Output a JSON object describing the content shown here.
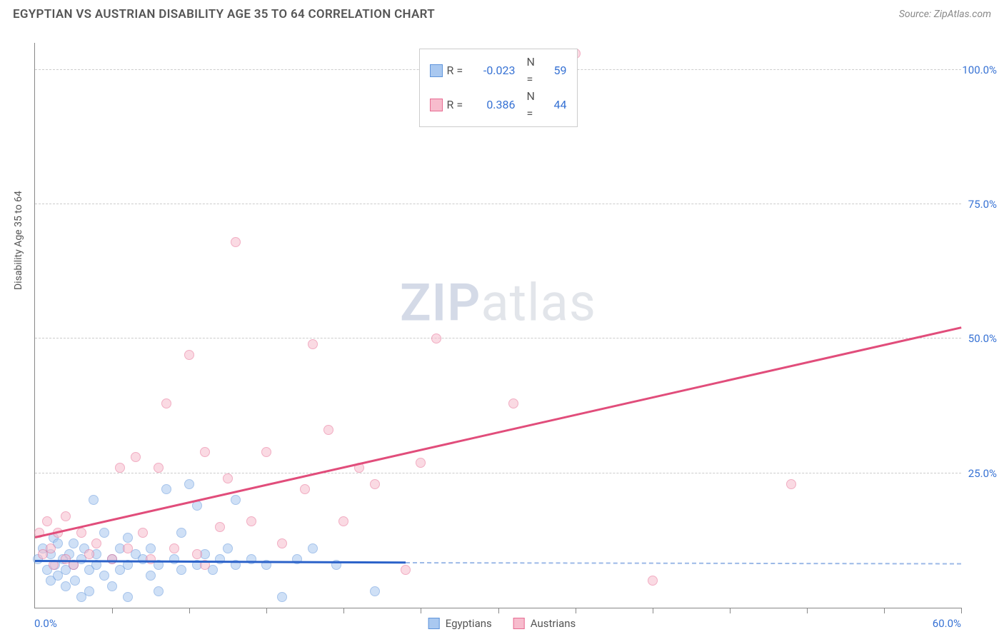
{
  "title": "EGYPTIAN VS AUSTRIAN DISABILITY AGE 35 TO 64 CORRELATION CHART",
  "source": "Source: ZipAtlas.com",
  "ylabel": "Disability Age 35 to 64",
  "watermark_bold": "ZIP",
  "watermark_rest": "atlas",
  "chart": {
    "type": "scatter",
    "xlim": [
      0,
      60
    ],
    "ylim": [
      0,
      105
    ],
    "x_min_label": "0.0%",
    "x_max_label": "60.0%",
    "y_ticks": [
      25,
      50,
      75,
      100
    ],
    "y_tick_labels": [
      "25.0%",
      "50.0%",
      "75.0%",
      "100.0%"
    ],
    "x_tick_step": 5,
    "background_color": "#ffffff",
    "grid_color": "#cccccc",
    "axis_color": "#888888",
    "label_color": "#3772d4",
    "point_radius": 7,
    "point_opacity": 0.55,
    "series": [
      {
        "name": "Egyptians",
        "fill": "#a9c8f0",
        "stroke": "#5f94db",
        "R": "-0.023",
        "N": "59",
        "trend": {
          "x1": 0,
          "y1": 8.5,
          "x2": 24,
          "y2": 8.2,
          "color": "#2b62c9",
          "width": 2.5,
          "dash_x2": 60,
          "dash_y2": 8.0,
          "dash_color": "#9cb9e7"
        },
        "points": [
          [
            0.2,
            9
          ],
          [
            0.5,
            11
          ],
          [
            0.8,
            7
          ],
          [
            1,
            10
          ],
          [
            1,
            5
          ],
          [
            1.2,
            13
          ],
          [
            1.3,
            8
          ],
          [
            1.5,
            6
          ],
          [
            1.5,
            12
          ],
          [
            1.8,
            9
          ],
          [
            2,
            7
          ],
          [
            2,
            4
          ],
          [
            2.2,
            10
          ],
          [
            2.5,
            8
          ],
          [
            2.5,
            12
          ],
          [
            2.6,
            5
          ],
          [
            3,
            9
          ],
          [
            3,
            2
          ],
          [
            3.2,
            11
          ],
          [
            3.5,
            7
          ],
          [
            3.5,
            3
          ],
          [
            3.8,
            20
          ],
          [
            4,
            8
          ],
          [
            4,
            10
          ],
          [
            4.5,
            6
          ],
          [
            4.5,
            14
          ],
          [
            5,
            9
          ],
          [
            5,
            4
          ],
          [
            5.5,
            11
          ],
          [
            5.5,
            7
          ],
          [
            6,
            2
          ],
          [
            6,
            8
          ],
          [
            6,
            13
          ],
          [
            6.5,
            10
          ],
          [
            7,
            9
          ],
          [
            7.5,
            6
          ],
          [
            7.5,
            11
          ],
          [
            8,
            3
          ],
          [
            8,
            8
          ],
          [
            8.5,
            22
          ],
          [
            9,
            9
          ],
          [
            9.5,
            7
          ],
          [
            9.5,
            14
          ],
          [
            10,
            23
          ],
          [
            10.5,
            8
          ],
          [
            10.5,
            19
          ],
          [
            11,
            10
          ],
          [
            11.5,
            7
          ],
          [
            12,
            9
          ],
          [
            12.5,
            11
          ],
          [
            13,
            8
          ],
          [
            13,
            20
          ],
          [
            14,
            9
          ],
          [
            15,
            8
          ],
          [
            16,
            2
          ],
          [
            17,
            9
          ],
          [
            18,
            11
          ],
          [
            19.5,
            8
          ],
          [
            22,
            3
          ]
        ]
      },
      {
        "name": "Austrians",
        "fill": "#f7bccd",
        "stroke": "#e76b92",
        "R": "0.386",
        "N": "44",
        "trend": {
          "x1": 0,
          "y1": 13,
          "x2": 60,
          "y2": 52,
          "color": "#e14d7b",
          "width": 2.5
        },
        "points": [
          [
            0.3,
            14
          ],
          [
            0.5,
            10
          ],
          [
            0.8,
            16
          ],
          [
            1,
            11
          ],
          [
            1.2,
            8
          ],
          [
            1.5,
            14
          ],
          [
            2,
            9
          ],
          [
            2,
            17
          ],
          [
            2.5,
            8
          ],
          [
            3,
            14
          ],
          [
            3.5,
            10
          ],
          [
            4,
            12
          ],
          [
            5,
            9
          ],
          [
            5.5,
            26
          ],
          [
            6,
            11
          ],
          [
            6.5,
            28
          ],
          [
            7,
            14
          ],
          [
            7.5,
            9
          ],
          [
            8,
            26
          ],
          [
            8.5,
            38
          ],
          [
            9,
            11
          ],
          [
            10,
            47
          ],
          [
            10.5,
            10
          ],
          [
            11,
            29
          ],
          [
            11,
            8
          ],
          [
            12,
            15
          ],
          [
            12.5,
            24
          ],
          [
            13,
            68
          ],
          [
            14,
            16
          ],
          [
            15,
            29
          ],
          [
            16,
            12
          ],
          [
            17.5,
            22
          ],
          [
            18,
            49
          ],
          [
            19,
            33
          ],
          [
            20,
            16
          ],
          [
            21,
            26
          ],
          [
            22,
            23
          ],
          [
            24,
            7
          ],
          [
            25,
            27
          ],
          [
            26,
            50
          ],
          [
            31,
            38
          ],
          [
            35,
            103
          ],
          [
            40,
            5
          ],
          [
            49,
            23
          ]
        ]
      }
    ]
  }
}
